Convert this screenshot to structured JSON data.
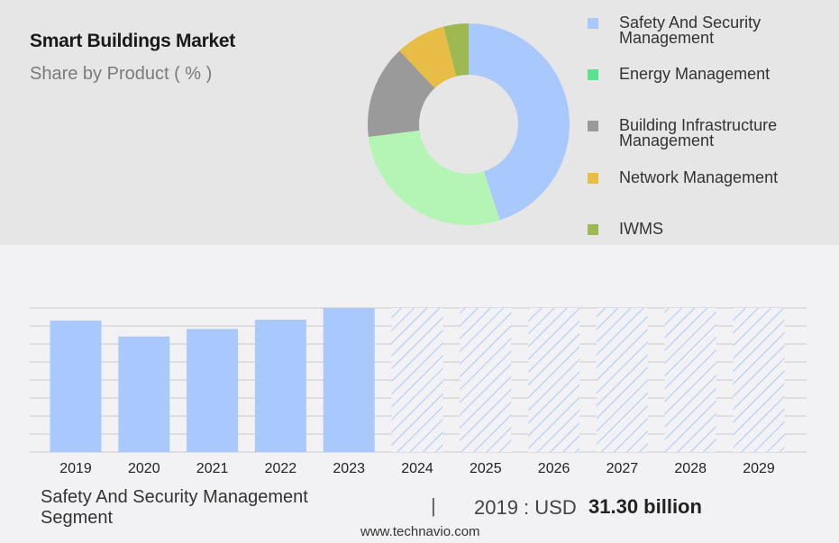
{
  "header": {
    "title": "Smart Buildings Market",
    "subtitle": "Share by Product ( % )"
  },
  "footer": {
    "segment": "Safety And Security Management Segment",
    "separator": "|",
    "year_label": "2019 : USD",
    "value_label": "31.30 billion",
    "site": "www.technavio.com"
  },
  "chart_data": [
    {
      "type": "pie",
      "donut": true,
      "categories": [
        "Safety And Security Management",
        "Energy Management",
        "Building Infrastructure Management",
        "Network Management",
        "IWMS"
      ],
      "values": [
        45,
        28,
        15,
        8,
        4
      ],
      "colors": [
        "#a9c8fb",
        "#b4f4b4",
        "#9a9a9a",
        "#e7bd45",
        "#9fb952"
      ],
      "legend": [
        "Safety And Security Management",
        "Energy Management",
        "Building Infrastructure Management",
        "Network Management",
        "IWMS"
      ],
      "legend_labels": [
        [
          "Safety And Security",
          "Management"
        ],
        [
          "Energy Management"
        ],
        [
          "Building Infrastructure",
          "Management"
        ],
        [
          "Network Management"
        ],
        [
          "IWMS"
        ]
      ],
      "legend_colors": [
        "#a9c8fb",
        "#5be38c",
        "#9a9a9a",
        "#e7bd45",
        "#9fb952"
      ],
      "legend_position": "right"
    },
    {
      "type": "bar",
      "categories": [
        "2019",
        "2020",
        "2021",
        "2022",
        "2023",
        "2024",
        "2025",
        "2026",
        "2027",
        "2028",
        "2029"
      ],
      "values": [
        31.3,
        27.5,
        29.3,
        31.5,
        34.3,
        null,
        null,
        null,
        null,
        null,
        null
      ],
      "forecast_categories": [
        "2024",
        "2025",
        "2026",
        "2027",
        "2028",
        "2029"
      ],
      "ylim": [
        0,
        34.3
      ],
      "grid": true,
      "bar_color": "#a9c8fb",
      "forecast_style": "hatched"
    }
  ]
}
